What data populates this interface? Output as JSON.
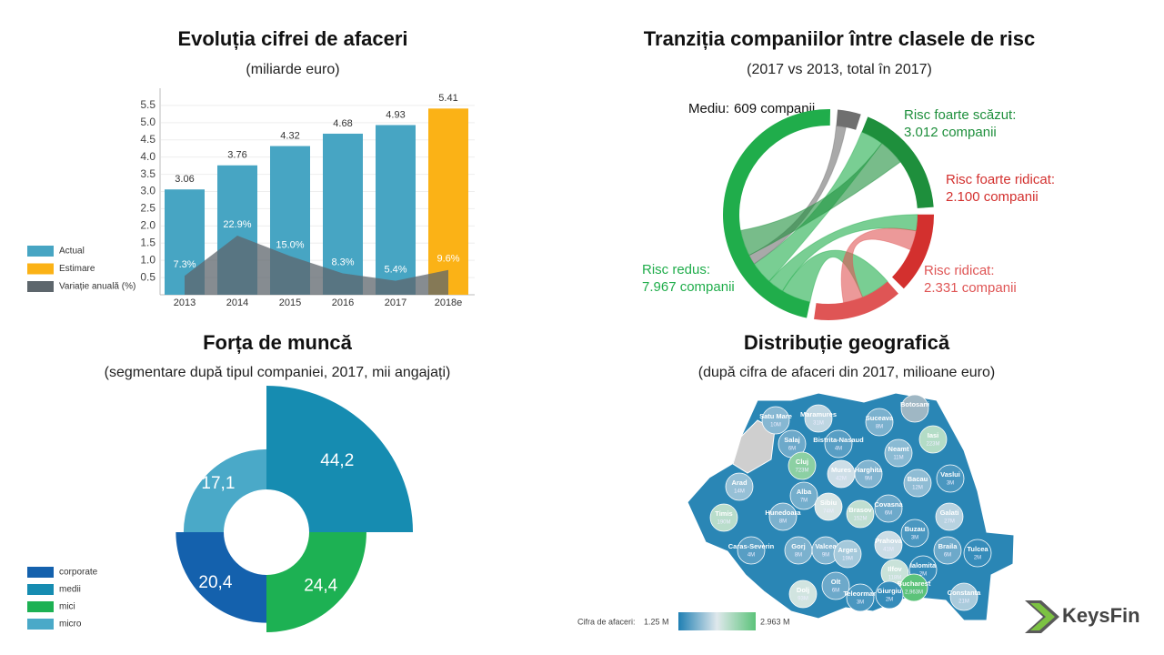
{
  "chart_data": [
    {
      "type": "bar",
      "title": "Evoluția cifrei de afaceri",
      "subtitle": "(miliarde euro)",
      "categories": [
        "2013",
        "2014",
        "2015",
        "2016",
        "2017",
        "2018e"
      ],
      "series": [
        {
          "name": "Actual",
          "color": "#47a5c3",
          "values": [
            3.06,
            3.76,
            4.32,
            4.68,
            4.93,
            null
          ]
        },
        {
          "name": "Estimare",
          "color": "#fbb216",
          "values": [
            null,
            null,
            null,
            null,
            null,
            5.41
          ]
        },
        {
          "name": "Variație anuală (%)",
          "color": "#5d666c",
          "axis": "y2",
          "values": [
            7.3,
            22.9,
            15.0,
            8.3,
            5.4,
            9.6
          ],
          "value_labels": [
            "7.3%",
            "22.9%",
            "15.0%",
            "8.3%",
            "5.4%",
            "9.6%"
          ]
        }
      ],
      "ylim": [
        0,
        6
      ],
      "yticks": [
        0.5,
        {
          "value": 1,
          "label": "1.0"
        },
        1.5,
        {
          "value": 2,
          "label": "2.0"
        },
        2.5,
        {
          "value": 3,
          "label": "3.0"
        },
        3.5,
        {
          "value": 4,
          "label": "4.0"
        },
        4.5,
        {
          "value": 5,
          "label": "5.0"
        },
        5.5
      ],
      "y2lim": [
        0,
        80
      ],
      "grid": true
    },
    {
      "type": "chord",
      "title": "Tranziția companiilor între clasele de risc",
      "subtitle": "(2017 vs 2013, total în 2017)",
      "categories": [
        "Mediu:",
        "Risc foarte scăzut:",
        "Risc foarte ridicat:",
        "Risc ridicat:",
        "Risc redus:"
      ],
      "values": [
        609,
        3012,
        2100,
        2331,
        7967
      ],
      "value_labels": [
        "609 companii",
        "3.012 companii",
        "2.100 companii",
        "2.331 companii",
        "7.967 companii"
      ],
      "colors": [
        "#6f6f6f",
        "#1e8f3c",
        "#d3302e",
        "#df5555",
        "#20ad4b"
      ],
      "links": [
        {
          "source": 4,
          "target": 3,
          "value": 900
        },
        {
          "source": 4,
          "target": 2,
          "value": 500
        },
        {
          "source": 4,
          "target": 1,
          "value": 700
        },
        {
          "source": 3,
          "target": 2,
          "value": 600
        },
        {
          "source": 0,
          "target": 4,
          "value": 300
        },
        {
          "source": 1,
          "target": 4,
          "value": 800
        }
      ]
    },
    {
      "type": "rose",
      "title": "Forța de muncă",
      "subtitle": "(segmentare după tipul companiei, 2017, mii angajați)",
      "categories": [
        "corporate",
        "medii",
        "mici",
        "micro"
      ],
      "values": [
        20.4,
        44.2,
        24.4,
        17.1
      ],
      "value_labels": [
        "20,4",
        "44,2",
        "24,4",
        "17,1"
      ],
      "colors": [
        "#1461ad",
        "#168cb1",
        "#1db153",
        "#4aa9c8"
      ]
    },
    {
      "type": "map",
      "title": "Distribuție geografică",
      "subtitle": "(după cifra de afaceri din 2017, milioane euro)",
      "regions": [
        "Satu Mare",
        "Maramures",
        "Botosani",
        "Suceava",
        "Iasi",
        "Salaj",
        "Bistrita-Nasaud",
        "Neamt",
        "Cluj",
        "Mures",
        "Harghita",
        "Vaslui",
        "Bacau",
        "Arad",
        "Alba",
        "Covasna",
        "Hunedoara",
        "Sibiu",
        "Brasov",
        "Galati",
        "Timis",
        "Buzau",
        "Caras-Severin",
        "Gorj",
        "Valcea",
        "Arges",
        "Prahova",
        "Braila",
        "Tulcea",
        "Ialomita",
        "Ilfov",
        "Bucharest",
        "Olt",
        "Dolj",
        "Teleorman",
        "Giurgiu",
        "Constanta"
      ],
      "values": [
        10,
        31,
        null,
        8,
        223,
        6,
        4,
        11,
        723,
        42,
        9,
        3,
        12,
        14,
        7,
        6,
        8,
        74,
        152,
        27,
        190,
        3,
        4,
        8,
        9,
        19,
        41,
        6,
        2,
        2,
        118,
        2963,
        6,
        93,
        3,
        2,
        21
      ],
      "value_labels": [
        "10M",
        "31M",
        null,
        "8M",
        "223M",
        "6M",
        "4M",
        "11M",
        "723M",
        "42M",
        "9M",
        "3M",
        "12M",
        "14M",
        "7M",
        "6M",
        "8M",
        "74M",
        "152M",
        "27M",
        "190M",
        "3M",
        "4M",
        "8M",
        "9M",
        "19M",
        "41M",
        "6M",
        "2M",
        "2M",
        "118M",
        "2,963M",
        "6M",
        "93M",
        "3M",
        "2M",
        "21M"
      ],
      "log": true,
      "colorbar": {
        "label": "Cifra de afaceri:",
        "range": [
          {
            "value": 1.25,
            "label": "1.25 M"
          },
          {
            "value": 2963,
            "label": "2.963 M"
          }
        ],
        "colors": [
          "#1f7fb3",
          "#dfe8ec",
          "#5cc37a"
        ]
      }
    }
  ],
  "logo": {
    "text": "KeysFin"
  }
}
